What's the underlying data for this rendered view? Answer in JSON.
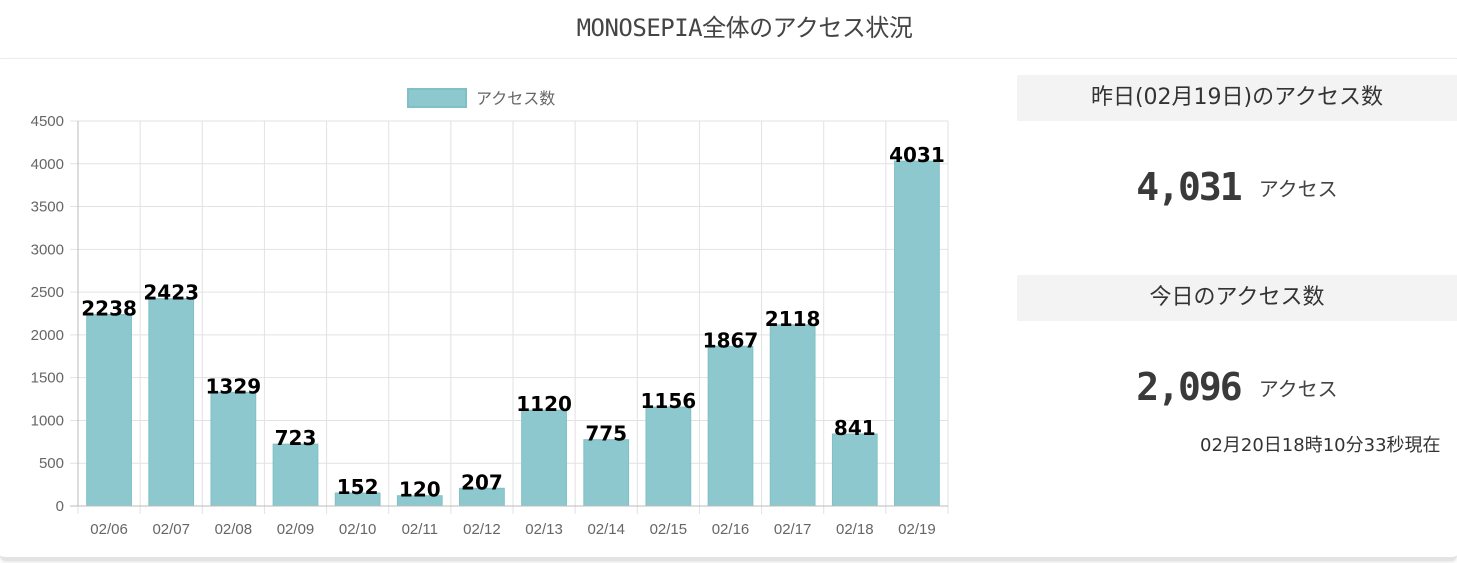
{
  "page_title": "MONOSEPIA全体のアクセス状況",
  "chart_data": {
    "type": "bar",
    "categories": [
      "02/06",
      "02/07",
      "02/08",
      "02/09",
      "02/10",
      "02/11",
      "02/12",
      "02/13",
      "02/14",
      "02/15",
      "02/16",
      "02/17",
      "02/18",
      "02/19"
    ],
    "series": [
      {
        "name": "アクセス数",
        "values": [
          2238,
          2423,
          1329,
          723,
          152,
          120,
          207,
          1120,
          775,
          1156,
          1867,
          2118,
          841,
          4031
        ],
        "color": "#8cc8cd"
      }
    ],
    "ylim": [
      0,
      4500
    ],
    "yticks": [
      0,
      500,
      1000,
      1500,
      2000,
      2500,
      3000,
      3500,
      4000,
      4500
    ],
    "grid": true,
    "legend": "top-center",
    "data_labels": true
  },
  "stats": {
    "yesterday": {
      "header": "昨日(02月19日)のアクセス数",
      "value": "4,031",
      "unit": "アクセス"
    },
    "today": {
      "header": "今日のアクセス数",
      "value": "2,096",
      "unit": "アクセス",
      "timestamp": "02月20日18時10分33秒現在"
    }
  }
}
